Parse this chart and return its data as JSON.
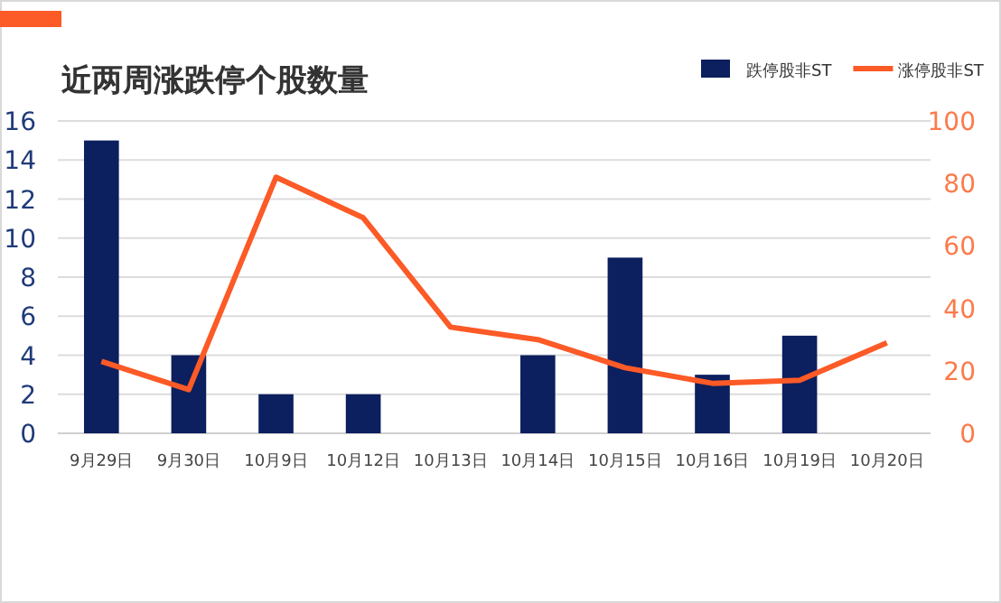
{
  "chart_data": {
    "type": "bar",
    "title": "近两周涨跌停个股数量",
    "categories": [
      "9月29日",
      "9月30日",
      "10月9日",
      "10月12日",
      "10月13日",
      "10月14日",
      "10月15日",
      "10月16日",
      "10月19日",
      "10月20日"
    ],
    "series": [
      {
        "name": "跌停股非ST",
        "color": "#0c1f5e",
        "values": [
          15,
          4,
          2,
          2,
          0,
          4,
          9,
          3,
          5,
          0
        ]
      },
      {
        "name": "涨停股非ST",
        "type": "line",
        "axis": "y2",
        "color": "#fc5a26",
        "values": [
          23,
          14,
          82,
          69,
          34,
          30,
          21,
          16,
          17,
          29
        ]
      }
    ],
    "ylim": [
      0,
      16
    ],
    "yticks": [
      0,
      2,
      4,
      6,
      8,
      10,
      12,
      14,
      16
    ],
    "y2lim": [
      0,
      100
    ],
    "y2ticks": [
      0,
      20,
      40,
      60,
      80,
      100
    ],
    "grid": "y",
    "legend": "top right"
  }
}
